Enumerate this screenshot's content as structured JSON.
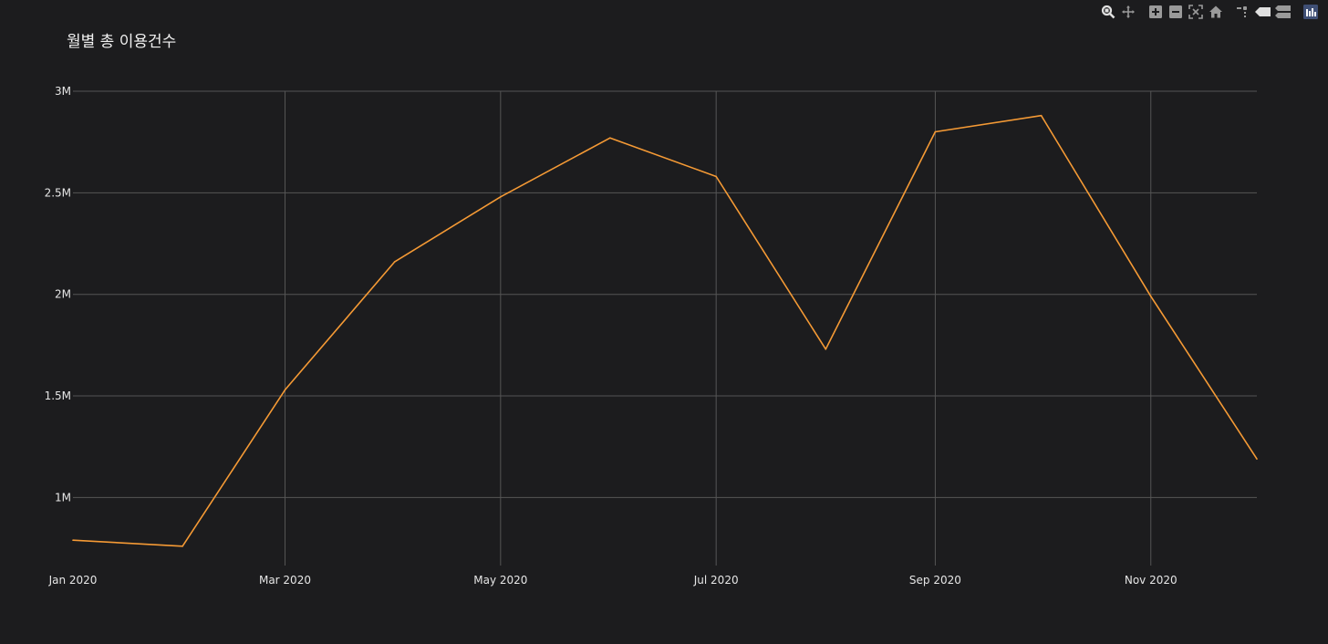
{
  "chart_data": {
    "type": "line",
    "title": "월별 총 이용건수",
    "xlabel": "",
    "ylabel": "",
    "x": [
      "2020-01-01",
      "2020-02-01",
      "2020-03-01",
      "2020-04-01",
      "2020-05-01",
      "2020-06-01",
      "2020-07-01",
      "2020-08-01",
      "2020-09-01",
      "2020-10-01",
      "2020-11-01",
      "2020-12-01"
    ],
    "x_ticks": [
      {
        "value": "2020-01-01",
        "label": "Jan 2020"
      },
      {
        "value": "2020-03-01",
        "label": "Mar 2020"
      },
      {
        "value": "2020-05-01",
        "label": "May 2020"
      },
      {
        "value": "2020-07-01",
        "label": "Jul 2020"
      },
      {
        "value": "2020-09-01",
        "label": "Sep 2020"
      },
      {
        "value": "2020-11-01",
        "label": "Nov 2020"
      }
    ],
    "xlim": [
      "2020-01-01",
      "2020-12-01"
    ],
    "series": [
      {
        "values": [
          790000,
          760000,
          1530000,
          2160000,
          2480000,
          2770000,
          2580000,
          1730000,
          2800000,
          2880000,
          1990000,
          1190000
        ],
        "color": "#f59a35"
      }
    ],
    "y_ticks": [
      {
        "value": 1000000,
        "label": "1M"
      },
      {
        "value": 1500000,
        "label": "1.5M"
      },
      {
        "value": 2000000,
        "label": "2M"
      },
      {
        "value": 2500000,
        "label": "2.5M"
      },
      {
        "value": 3000000,
        "label": "3M"
      }
    ],
    "ylim": [
      665000,
      3000000
    ],
    "grid": true,
    "legend": "none",
    "background": "#1c1c1e",
    "grid_color": "#555555",
    "text_color": "#e6e6e6"
  },
  "modebar": {
    "icons": [
      "zoom-icon",
      "pan-icon",
      "zoom-in-icon",
      "zoom-out-icon",
      "autoscale-icon",
      "reset-axes-icon",
      "spike-lines-icon",
      "hover-closest-icon",
      "hover-compare-icon",
      "plotly-logo-icon"
    ]
  }
}
